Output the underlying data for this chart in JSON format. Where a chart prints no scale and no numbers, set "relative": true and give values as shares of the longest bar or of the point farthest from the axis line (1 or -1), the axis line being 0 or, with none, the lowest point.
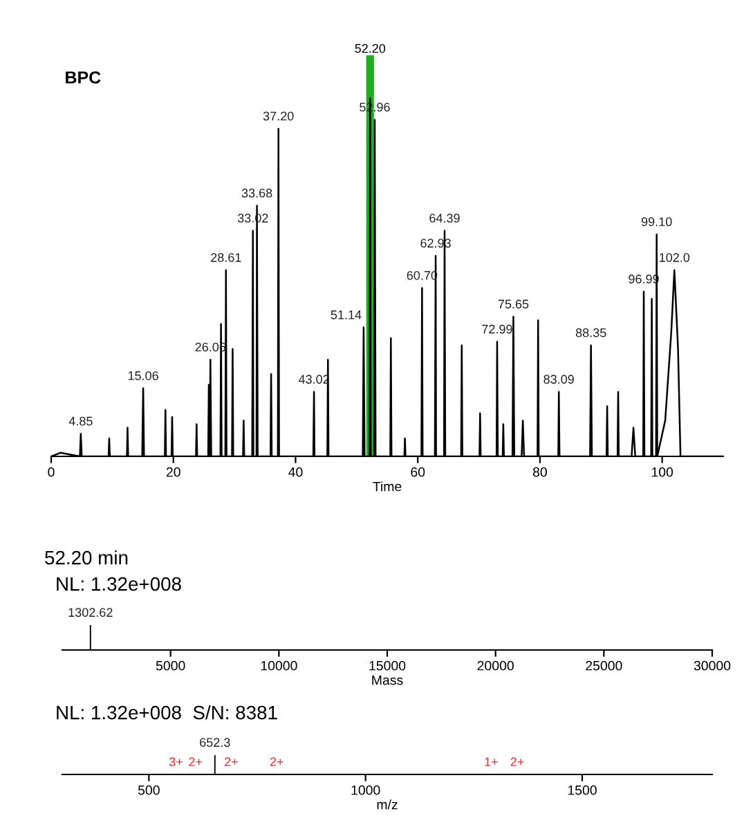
{
  "chart_data": [
    {
      "type": "line",
      "title": "BPC",
      "xlabel": "Time",
      "relative": true,
      "xlim": [
        0,
        110
      ],
      "xticks": [
        0,
        20,
        40,
        60,
        80,
        100
      ],
      "grid": false,
      "series": [
        {
          "color": "#000000",
          "x": [
            0,
            1.5,
            4.7,
            4.85,
            5.0,
            9.4,
            9.5,
            9.6,
            12.4,
            12.5,
            12.6,
            14.9,
            15.06,
            15.2,
            18.6,
            18.7,
            18.8,
            19.7,
            19.8,
            19.9,
            23.7,
            23.8,
            23.9,
            25.7,
            25.8,
            25.9,
            25.95,
            26.06,
            26.2,
            27.7,
            27.8,
            27.9,
            28.5,
            28.61,
            28.7,
            29.6,
            29.7,
            29.8,
            31.4,
            31.5,
            31.6,
            32.9,
            33.02,
            33.1,
            33.6,
            33.68,
            33.8,
            35.9,
            36.0,
            36.1,
            37.1,
            37.2,
            37.3,
            42.9,
            43.02,
            43.1,
            45.2,
            45.3,
            45.4,
            51.0,
            51.14,
            51.3,
            52.1,
            52.2,
            52.3,
            52.9,
            52.96,
            53.1,
            55.5,
            55.6,
            55.7,
            57.8,
            57.9,
            58.0,
            60.6,
            60.7,
            60.8,
            62.8,
            62.93,
            63.0,
            64.3,
            64.39,
            64.5,
            67.1,
            67.2,
            67.3,
            70.1,
            70.2,
            70.3,
            72.9,
            72.99,
            73.1,
            73.9,
            74.0,
            74.1,
            75.5,
            75.65,
            75.8,
            77.0,
            77.2,
            77.4,
            79.6,
            79.7,
            79.8,
            83.0,
            83.09,
            83.2,
            88.2,
            88.35,
            88.5,
            90.9,
            91.0,
            91.1,
            92.7,
            92.8,
            92.9,
            95.0,
            95.3,
            95.6,
            96.9,
            96.99,
            97.1,
            98.2,
            98.3,
            98.4,
            99.0,
            99.1,
            99.2,
            100.5,
            101.5,
            102.0,
            102.6,
            103.0,
            110
          ],
          "values": [
            0,
            0.01,
            0,
            0.063,
            0,
            0,
            0.05,
            0,
            0,
            0.08,
            0,
            0,
            0.19,
            0,
            0,
            0.13,
            0,
            0,
            0.11,
            0,
            0,
            0.09,
            0,
            0,
            0.2,
            0,
            0,
            0.27,
            0,
            0,
            0.37,
            0,
            0,
            0.52,
            0,
            0,
            0.3,
            0,
            0,
            0.1,
            0,
            0,
            0.63,
            0,
            0,
            0.7,
            0,
            0,
            0.23,
            0,
            0,
            0.915,
            0,
            0,
            0.18,
            0,
            0,
            0.27,
            0,
            0,
            0.36,
            0,
            0,
            1.0,
            0,
            0,
            0.94,
            0,
            0,
            0.33,
            0,
            0,
            0.05,
            0,
            0,
            0.47,
            0,
            0,
            0.56,
            0,
            0,
            0.63,
            0,
            0,
            0.31,
            0,
            0,
            0.12,
            0,
            0,
            0.32,
            0,
            0,
            0.09,
            0,
            0,
            0.39,
            0,
            0,
            0.1,
            0,
            0,
            0.38,
            0,
            0,
            0.18,
            0,
            0,
            0.31,
            0,
            0,
            0.14,
            0,
            0,
            0.18,
            0,
            0,
            0.08,
            0,
            0,
            0.46,
            0,
            0,
            0.44,
            0,
            0,
            0.62,
            0,
            0.1,
            0.35,
            0.52,
            0.3,
            0,
            0
          ]
        }
      ],
      "ref_lines": [
        {
          "axis": "x",
          "value": 52.2,
          "label": "52.20",
          "color": "#22aa22"
        }
      ],
      "annotations": [
        {
          "text": "4.85",
          "x": 4.85,
          "y": 0.063
        },
        {
          "text": "15.06",
          "x": 15.06,
          "y": 0.19
        },
        {
          "text": "26.06",
          "x": 26.06,
          "y": 0.27
        },
        {
          "text": "28.61",
          "x": 28.61,
          "y": 0.52
        },
        {
          "text": "33.02",
          "x": 33.02,
          "y": 0.63
        },
        {
          "text": "33.68",
          "x": 33.68,
          "y": 0.7
        },
        {
          "text": "37.20",
          "x": 37.2,
          "y": 0.915
        },
        {
          "text": "43.02",
          "x": 43.02,
          "y": 0.18
        },
        {
          "text": "51.14",
          "x": 51.14,
          "y": 0.36
        },
        {
          "text": "52.96",
          "x": 52.96,
          "y": 0.94
        },
        {
          "text": "60.70",
          "x": 60.7,
          "y": 0.47
        },
        {
          "text": "62.93",
          "x": 62.93,
          "y": 0.56
        },
        {
          "text": "64.39",
          "x": 64.39,
          "y": 0.63
        },
        {
          "text": "72.99",
          "x": 72.99,
          "y": 0.32
        },
        {
          "text": "75.65",
          "x": 75.65,
          "y": 0.39
        },
        {
          "text": "83.09",
          "x": 83.09,
          "y": 0.18
        },
        {
          "text": "88.35",
          "x": 88.35,
          "y": 0.31
        },
        {
          "text": "96.99",
          "x": 96.99,
          "y": 0.46
        },
        {
          "text": "99.10",
          "x": 99.1,
          "y": 0.62
        },
        {
          "text": "102.0",
          "x": 102.0,
          "y": 0.52
        }
      ]
    },
    {
      "type": "bar",
      "title": "52.20 min",
      "subtitle": "NL: 1.32e+008",
      "xlabel": "Mass",
      "relative": true,
      "xlim": [
        0,
        30000
      ],
      "xticks": [
        5000,
        10000,
        15000,
        20000,
        25000,
        30000
      ],
      "series": [
        {
          "color": "#000000",
          "x": [
            1302.62
          ],
          "values": [
            1.0
          ]
        }
      ],
      "annotations": [
        {
          "text": "1302.62",
          "x": 1302.62,
          "y": 1.0
        }
      ]
    },
    {
      "type": "bar",
      "title": "NL: 1.32e+008  S/N: 8381",
      "xlabel": "m/z",
      "relative": true,
      "xlim": [
        300,
        1800
      ],
      "xticks": [
        500,
        1000,
        1500
      ],
      "series": [
        {
          "color": "#000000",
          "x": [
            652.3
          ],
          "values": [
            1.0
          ]
        }
      ],
      "annotations": [
        {
          "text": "652.3",
          "x": 652.3,
          "y": 1.0
        },
        "3+",
        "2+",
        "2+",
        "2+",
        "1+",
        "2+"
      ]
    }
  ]
}
